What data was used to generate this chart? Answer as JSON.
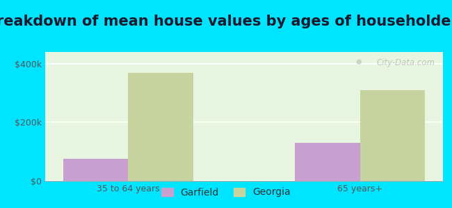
{
  "title": "Breakdown of mean house values by ages of householders",
  "categories": [
    "35 to 64 years",
    "65 years+"
  ],
  "garfield_values": [
    75000,
    130000
  ],
  "georgia_values": [
    370000,
    310000
  ],
  "garfield_color": "#c8a0d0",
  "georgia_color": "#c8d4a0",
  "background_outer": "#00e5ff",
  "background_inner": "#e8f5e0",
  "ylim": [
    0,
    440000
  ],
  "yticks": [
    0,
    200000,
    400000
  ],
  "ytick_labels": [
    "$0",
    "$200k",
    "$400k"
  ],
  "bar_width": 0.28,
  "legend_labels": [
    "Garfield",
    "Georgia"
  ],
  "title_fontsize": 15,
  "tick_fontsize": 9,
  "legend_fontsize": 10,
  "watermark_text": "City-Data.com"
}
